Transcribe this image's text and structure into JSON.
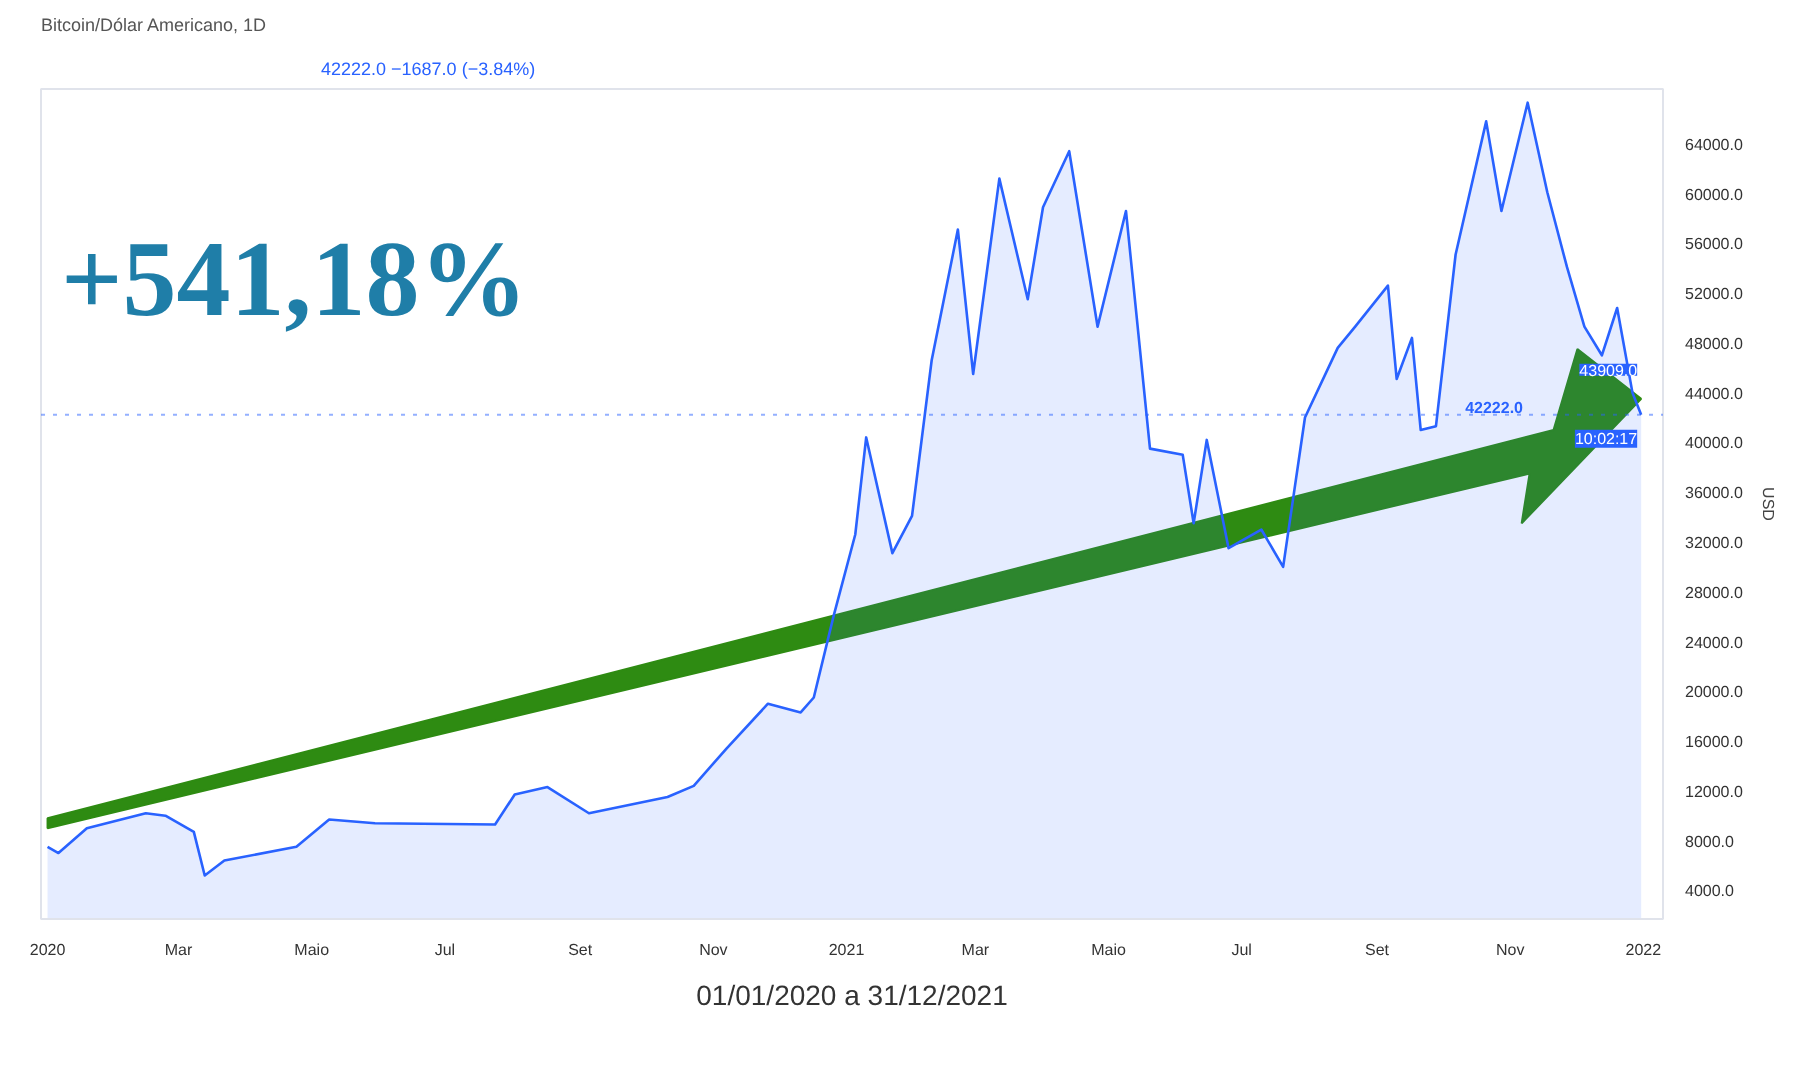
{
  "chart_data": {
    "type": "area",
    "title": "Bitcoin/Dólar Americano, 1D",
    "subtitle": "42222.0 −1687.0 (−3.84%)",
    "ylabel": "USD",
    "x": [
      "2020-01-01",
      "2020-01-06",
      "2020-01-19",
      "2020-02-15",
      "2020-02-24",
      "2020-03-08",
      "2020-03-13",
      "2020-03-22",
      "2020-04-24",
      "2020-05-09",
      "2020-05-30",
      "2020-07-24",
      "2020-08-02",
      "2020-08-17",
      "2020-09-05",
      "2020-10-11",
      "2020-10-23",
      "2020-11-07",
      "2020-11-26",
      "2020-12-11",
      "2020-12-17",
      "2020-12-26",
      "2021-01-05",
      "2021-01-10",
      "2021-01-22",
      "2021-01-31",
      "2021-02-09",
      "2021-02-21",
      "2021-02-28",
      "2021-03-12",
      "2021-03-25",
      "2021-04-01",
      "2021-04-13",
      "2021-04-26",
      "2021-05-09",
      "2021-05-20",
      "2021-06-04",
      "2021-06-09",
      "2021-06-15",
      "2021-06-25",
      "2021-07-10",
      "2021-07-20",
      "2021-07-30",
      "2021-08-14",
      "2021-08-22",
      "2021-09-06",
      "2021-09-10",
      "2021-09-17",
      "2021-09-21",
      "2021-09-28",
      "2021-10-07",
      "2021-10-21",
      "2021-10-28",
      "2021-11-09",
      "2021-11-18",
      "2021-11-27",
      "2021-12-05",
      "2021-12-13",
      "2021-12-20",
      "2021-12-27",
      "2021-12-31"
    ],
    "series": [
      {
        "color": "#2962ff",
        "values": [
          7500,
          7000,
          9000,
          10200,
          10000,
          8700,
          5200,
          6400,
          7500,
          9700,
          9400,
          9300,
          11700,
          12300,
          10200,
          11500,
          12400,
          15400,
          19000,
          18300,
          19500,
          26000,
          32600,
          40400,
          31100,
          34100,
          46600,
          57100,
          45500,
          61200,
          51500,
          58900,
          63400,
          49300,
          58600,
          39500,
          39000,
          33500,
          40200,
          31500,
          33000,
          30000,
          42000,
          47600,
          49300,
          52600,
          45100,
          48400,
          41000,
          41300,
          55100,
          65800,
          58600,
          67300,
          60100,
          54100,
          49300,
          47000,
          50800,
          44000,
          42222
        ]
      }
    ],
    "xlim": [
      "2019-12-29",
      "2022-01-10"
    ],
    "xticks": [
      {
        "value": "2020-01-01",
        "label": "2020"
      },
      {
        "value": "2020-03-01",
        "label": "Mar"
      },
      {
        "value": "2020-05-01",
        "label": "Maio"
      },
      {
        "value": "2020-07-01",
        "label": "Jul"
      },
      {
        "value": "2020-09-01",
        "label": "Set"
      },
      {
        "value": "2020-11-01",
        "label": "Nov"
      },
      {
        "value": "2021-01-01",
        "label": "2021"
      },
      {
        "value": "2021-03-01",
        "label": "Mar"
      },
      {
        "value": "2021-05-01",
        "label": "Maio"
      },
      {
        "value": "2021-07-01",
        "label": "Jul"
      },
      {
        "value": "2021-09-01",
        "label": "Set"
      },
      {
        "value": "2021-11-01",
        "label": "Nov"
      },
      {
        "value": "2022-01-01",
        "label": "2022"
      }
    ],
    "ylim": [
      1700,
      68400
    ],
    "yticks": [
      {
        "value": 4000,
        "label": "4000.0"
      },
      {
        "value": 8000,
        "label": "8000.0"
      },
      {
        "value": 12000,
        "label": "12000.0"
      },
      {
        "value": 16000,
        "label": "16000.0"
      },
      {
        "value": 20000,
        "label": "20000.0"
      },
      {
        "value": 24000,
        "label": "24000.0"
      },
      {
        "value": 28000,
        "label": "28000.0"
      },
      {
        "value": 32000,
        "label": "32000.0"
      },
      {
        "value": 36000,
        "label": "36000.0"
      },
      {
        "value": 40000,
        "label": "40000.0"
      },
      {
        "value": 44000,
        "label": "44000.0"
      },
      {
        "value": 48000,
        "label": "48000.0"
      },
      {
        "value": 52000,
        "label": "52000.0"
      },
      {
        "value": 56000,
        "label": "56000.0"
      },
      {
        "value": 60000,
        "label": "60000.0"
      },
      {
        "value": 64000,
        "label": "64000.0"
      }
    ],
    "ref_lines": [
      {
        "axis": "y",
        "value": 42222,
        "label": "42222.0",
        "color": "#2962ff",
        "line_style": "dotted"
      }
    ],
    "annotations": [
      "+541,18%",
      {
        "text": "43909.0",
        "x": "2021-12-31",
        "y": 43909
      },
      {
        "text": "10:02:17",
        "x": "2021-12-31",
        "y": 42222
      },
      "01/01/2020 a 31/12/2021"
    ],
    "grid": false,
    "line_style": "solid",
    "marker": "none"
  }
}
